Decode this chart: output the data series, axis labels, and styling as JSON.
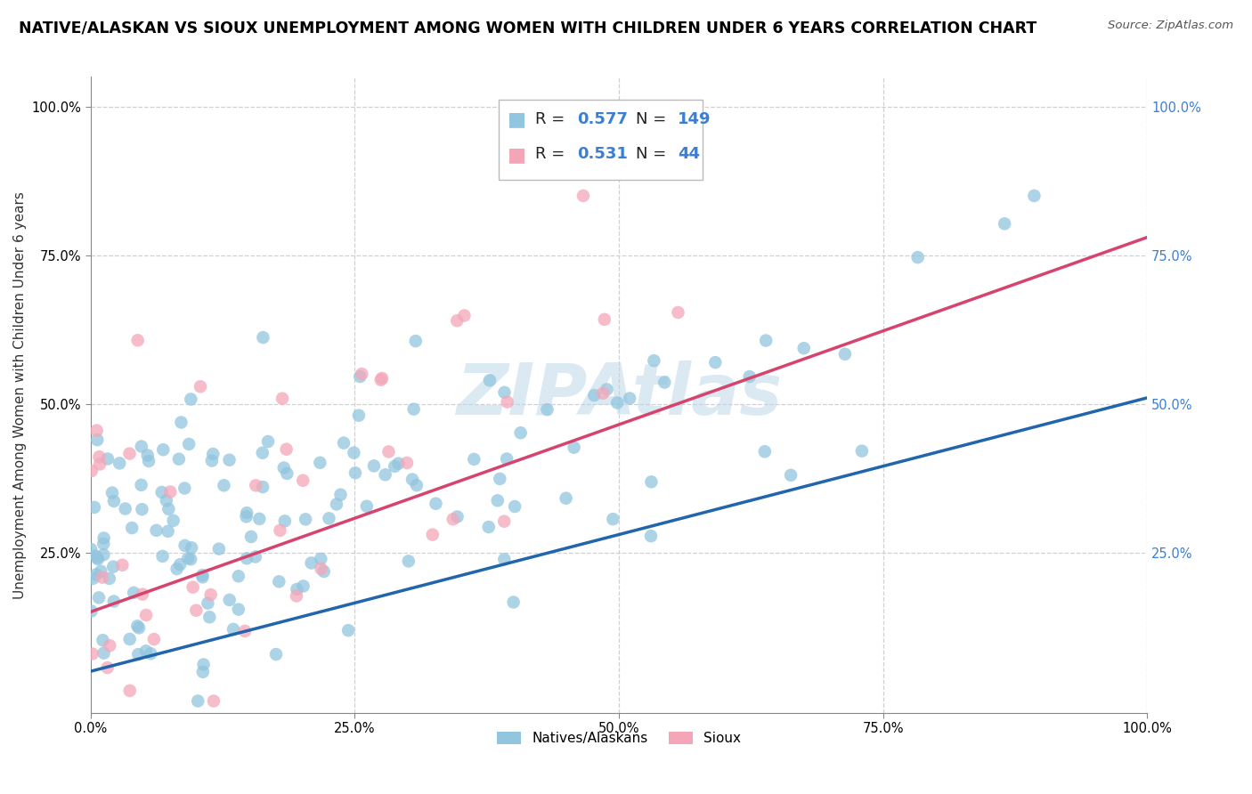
{
  "title": "NATIVE/ALASKAN VS SIOUX UNEMPLOYMENT AMONG WOMEN WITH CHILDREN UNDER 6 YEARS CORRELATION CHART",
  "source": "Source: ZipAtlas.com",
  "ylabel": "Unemployment Among Women with Children Under 6 years",
  "xlim": [
    0.0,
    1.0
  ],
  "ylim": [
    -0.02,
    1.05
  ],
  "xtick_labels": [
    "0.0%",
    "25.0%",
    "50.0%",
    "75.0%",
    "100.0%"
  ],
  "xtick_values": [
    0.0,
    0.25,
    0.5,
    0.75,
    1.0
  ],
  "ytick_labels": [
    "25.0%",
    "50.0%",
    "75.0%",
    "100.0%"
  ],
  "ytick_values": [
    0.25,
    0.5,
    0.75,
    1.0
  ],
  "ytick_right_labels": [
    "100.0%",
    "75.0%",
    "50.0%",
    "25.0%"
  ],
  "ytick_right_values": [
    1.0,
    0.75,
    0.5,
    0.25
  ],
  "blue_R": 0.577,
  "blue_N": 149,
  "pink_R": 0.531,
  "pink_N": 44,
  "blue_color": "#92c5de",
  "pink_color": "#f4a6b8",
  "blue_line_color": "#2166ac",
  "pink_line_color": "#d6446e",
  "watermark_color": "#b8d4e8",
  "legend_blue_label": "Natives/Alaskans",
  "legend_pink_label": "Sioux",
  "background_color": "#ffffff",
  "grid_color": "#d0d0d0",
  "title_fontsize": 12.5,
  "axis_label_fontsize": 11,
  "tick_fontsize": 10.5,
  "value_color": "#3a7fd5",
  "blue_line_intercept": 0.05,
  "blue_line_slope": 0.46,
  "pink_line_intercept": 0.15,
  "pink_line_slope": 0.63
}
